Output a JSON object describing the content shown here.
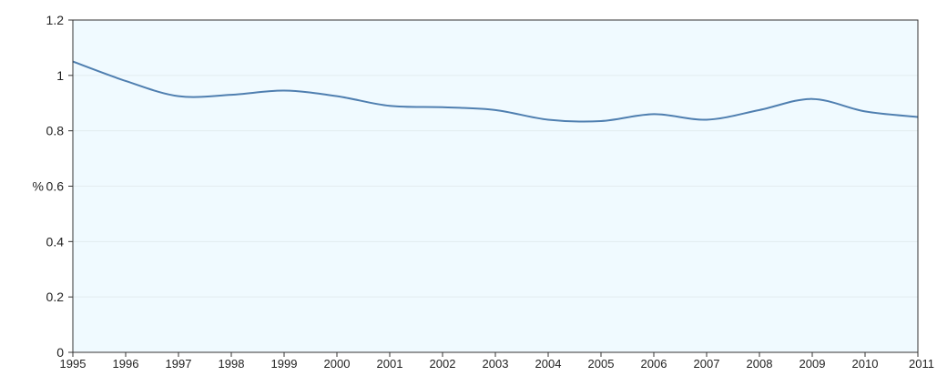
{
  "chart_data": {
    "type": "line",
    "title": "",
    "xlabel": "",
    "ylabel": "%",
    "x": [
      "1995",
      "1996",
      "1997",
      "1998",
      "1999",
      "2000",
      "2001",
      "2002",
      "2003",
      "2004",
      "2005",
      "2006",
      "2007",
      "2008",
      "2009",
      "2010",
      "2011"
    ],
    "series": [
      {
        "values": [
          1.05,
          0.98,
          0.925,
          0.93,
          0.945,
          0.925,
          0.89,
          0.885,
          0.875,
          0.84,
          0.835,
          0.86,
          0.84,
          0.875,
          0.915,
          0.87,
          0.85
        ]
      }
    ],
    "ylim": [
      0,
      1.2
    ],
    "yticks": [
      0,
      0.2,
      0.4,
      0.6,
      0.8,
      1,
      1.2
    ],
    "ytick_labels": [
      "0",
      "0.2",
      "0.4",
      "0.6",
      "0.8",
      "1",
      "1.2"
    ],
    "grid": "horizontal",
    "legend": "none",
    "colors": {
      "line": "#4f7fb0",
      "plot_background": "#f0faff",
      "gridline": "#e3ecef",
      "frame": "#333333"
    }
  }
}
